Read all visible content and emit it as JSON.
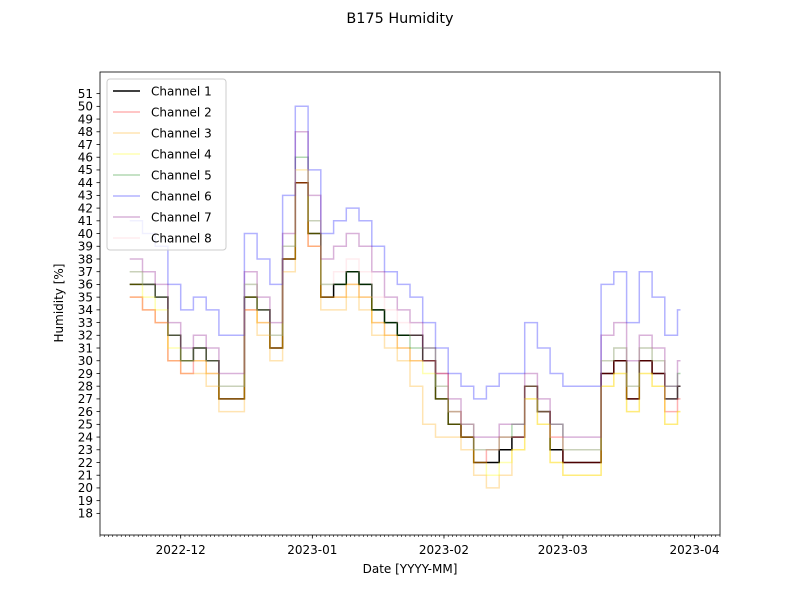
{
  "chart_data": {
    "type": "line",
    "title": "B175 Humidity",
    "xlabel": "Date [YYYY-MM]",
    "ylabel": "Humidity [%]",
    "xlim": [
      "2022-11-12",
      "2023-04-07"
    ],
    "ylim": [
      16.3,
      52.7
    ],
    "x_ticks": [
      "2022-12",
      "2023-01",
      "2023-02",
      "2023-03",
      "2023-04"
    ],
    "y_ticks": [
      18,
      19,
      20,
      21,
      22,
      23,
      24,
      25,
      26,
      27,
      28,
      29,
      30,
      31,
      32,
      33,
      34,
      35,
      36,
      37,
      38,
      39,
      40,
      41,
      42,
      43,
      44,
      45,
      46,
      47,
      48,
      49,
      50,
      51
    ],
    "legend_position": "upper left",
    "grid": false,
    "x": [
      "2022-11-19",
      "2022-11-22",
      "2022-11-25",
      "2022-11-28",
      "2022-12-01",
      "2022-12-04",
      "2022-12-07",
      "2022-12-10",
      "2022-12-13",
      "2022-12-16",
      "2022-12-19",
      "2022-12-22",
      "2022-12-25",
      "2022-12-28",
      "2022-12-31",
      "2023-01-03",
      "2023-01-06",
      "2023-01-09",
      "2023-01-12",
      "2023-01-15",
      "2023-01-18",
      "2023-01-21",
      "2023-01-24",
      "2023-01-27",
      "2023-01-30",
      "2023-02-02",
      "2023-02-05",
      "2023-02-08",
      "2023-02-11",
      "2023-02-14",
      "2023-02-17",
      "2023-02-20",
      "2023-02-23",
      "2023-02-26",
      "2023-03-01",
      "2023-03-04",
      "2023-03-07",
      "2023-03-10",
      "2023-03-13",
      "2023-03-16",
      "2023-03-19",
      "2023-03-22",
      "2023-03-25",
      "2023-03-28"
    ],
    "series": [
      {
        "name": "Channel 1",
        "color": "#000000",
        "opacity": 1.0,
        "values": [
          36,
          36,
          35,
          32,
          30,
          31,
          30,
          27,
          27,
          35,
          34,
          31,
          38,
          44,
          40,
          35,
          36,
          37,
          36,
          34,
          33,
          32,
          32,
          30,
          27,
          25,
          24,
          22,
          22,
          23,
          24,
          28,
          26,
          23,
          22,
          22,
          22,
          29,
          30,
          27,
          30,
          29,
          27,
          28
        ]
      },
      {
        "name": "Channel 2",
        "color": "#ff0000",
        "opacity": 0.3,
        "values": [
          35,
          34,
          33,
          30,
          29,
          30,
          29,
          27,
          27,
          34,
          33,
          31,
          38,
          44,
          39,
          35,
          35,
          36,
          35,
          33,
          32,
          31,
          30,
          30,
          29,
          26,
          24,
          22,
          23,
          24,
          24,
          28,
          26,
          24,
          22,
          22,
          22,
          29,
          30,
          27,
          30,
          29,
          26,
          27
        ]
      },
      {
        "name": "Channel 3",
        "color": "#ffa500",
        "opacity": 0.3,
        "values": [
          35,
          34,
          33,
          30,
          29,
          29,
          28,
          26,
          26,
          34,
          32,
          30,
          37,
          44,
          39,
          34,
          34,
          35,
          34,
          32,
          31,
          30,
          28,
          25,
          24,
          24,
          23,
          21,
          20,
          21,
          23,
          27,
          25,
          22,
          21,
          21,
          21,
          28,
          29,
          26,
          29,
          28,
          25,
          26
        ]
      },
      {
        "name": "Channel 4",
        "color": "#ffff00",
        "opacity": 0.3,
        "values": [
          36,
          35,
          34,
          31,
          30,
          30,
          29,
          27,
          27,
          35,
          33,
          31,
          38,
          45,
          40,
          35,
          35,
          36,
          35,
          33,
          32,
          31,
          30,
          29,
          27,
          25,
          24,
          22,
          21,
          22,
          23,
          27,
          25,
          22,
          21,
          21,
          21,
          28,
          29,
          26,
          29,
          28,
          25,
          26
        ]
      },
      {
        "name": "Channel 5",
        "color": "#008000",
        "opacity": 0.3,
        "values": [
          37,
          36,
          35,
          32,
          30,
          31,
          30,
          28,
          28,
          36,
          34,
          32,
          39,
          46,
          41,
          36,
          36,
          37,
          36,
          34,
          33,
          32,
          31,
          31,
          28,
          26,
          25,
          23,
          23,
          24,
          25,
          28,
          26,
          25,
          23,
          23,
          23,
          30,
          31,
          28,
          31,
          30,
          28,
          29
        ]
      },
      {
        "name": "Channel 6",
        "color": "#0000ff",
        "opacity": 0.3,
        "values": [
          41,
          40,
          39,
          36,
          34,
          35,
          34,
          32,
          32,
          40,
          38,
          36,
          43,
          50,
          45,
          40,
          41,
          42,
          41,
          39,
          37,
          36,
          35,
          33,
          31,
          29,
          28,
          27,
          28,
          29,
          29,
          33,
          31,
          29,
          28,
          28,
          28,
          36,
          37,
          33,
          37,
          35,
          32,
          34
        ]
      },
      {
        "name": "Channel 7",
        "color": "#800080",
        "opacity": 0.3,
        "values": [
          38,
          37,
          36,
          33,
          31,
          32,
          31,
          29,
          29,
          37,
          35,
          33,
          40,
          48,
          43,
          38,
          39,
          40,
          39,
          37,
          35,
          34,
          33,
          31,
          29,
          27,
          25,
          24,
          24,
          25,
          25,
          29,
          27,
          25,
          24,
          24,
          24,
          32,
          33,
          30,
          32,
          31,
          28,
          30
        ]
      },
      {
        "name": "Channel 8",
        "color": "#ffc0cb",
        "opacity": 0.3,
        "values": [
          37,
          36,
          35,
          32,
          30,
          31,
          30,
          28,
          28,
          36,
          34,
          32,
          39,
          45,
          41,
          36,
          37,
          38,
          37,
          35,
          34,
          33,
          32,
          30,
          28,
          26,
          25,
          23,
          23,
          24,
          24,
          28,
          26,
          24,
          23,
          23,
          23,
          30,
          31,
          28,
          31,
          30,
          27,
          28
        ]
      }
    ]
  }
}
